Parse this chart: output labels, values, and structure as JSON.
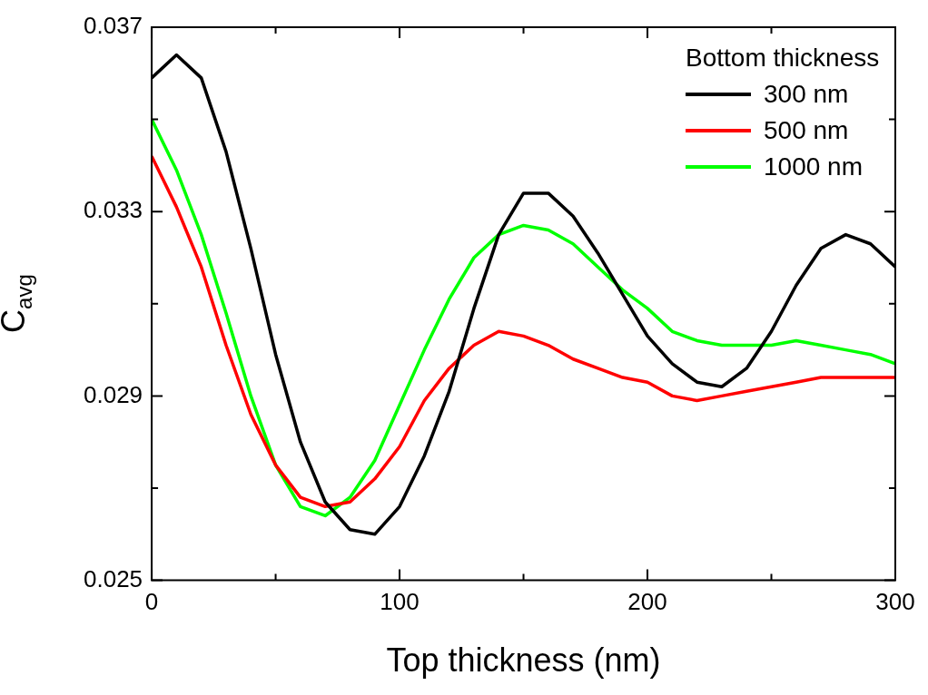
{
  "chart_data": {
    "type": "line",
    "xlabel": "Top thickness (nm)",
    "ylabel": "C$_{avg}$",
    "legend_title": "Bottom thickness",
    "legend": "top right",
    "grid": false,
    "marker": "none",
    "line_style": "solid",
    "x": [
      0,
      10,
      20,
      30,
      40,
      50,
      60,
      70,
      80,
      90,
      100,
      110,
      120,
      130,
      140,
      150,
      160,
      170,
      180,
      190,
      200,
      210,
      220,
      230,
      240,
      250,
      260,
      270,
      280,
      290,
      300
    ],
    "xlim": [
      0,
      300
    ],
    "xticks": [
      0,
      {
        "value": 50,
        "label": null
      },
      100,
      {
        "value": 150,
        "label": null
      },
      200,
      {
        "value": 250,
        "label": null
      },
      300
    ],
    "ylim": [
      0.025,
      0.037
    ],
    "yticks": [
      0.025,
      {
        "value": 0.027,
        "label": null
      },
      0.029,
      {
        "value": 0.031,
        "label": null
      },
      0.033,
      {
        "value": 0.035,
        "label": null
      },
      0.037
    ],
    "series": [
      {
        "name": "300 nm",
        "color": "#000000",
        "values": [
          0.0359,
          0.0364,
          0.0359,
          0.0343,
          0.0322,
          0.0299,
          0.028,
          0.0267,
          0.0261,
          0.026,
          0.0266,
          0.0277,
          0.0291,
          0.0309,
          0.0325,
          0.0334,
          0.0334,
          0.0329,
          0.0321,
          0.0312,
          0.0303,
          0.0297,
          0.0293,
          0.0292,
          0.0296,
          0.0304,
          0.0314,
          0.0322,
          0.0325,
          0.0323,
          0.0318
        ]
      },
      {
        "name": "500 nm",
        "color": "#ff0000",
        "values": [
          0.0342,
          0.0331,
          0.0318,
          0.0301,
          0.0286,
          0.0275,
          0.0268,
          0.0266,
          0.0267,
          0.0272,
          0.0279,
          0.0289,
          0.0296,
          0.0301,
          0.0304,
          0.0303,
          0.0301,
          0.0298,
          0.0296,
          0.0294,
          0.0293,
          0.029,
          0.0289,
          0.029,
          0.0291,
          0.0292,
          0.0293,
          0.0294,
          0.0294,
          0.0294,
          0.0294
        ]
      },
      {
        "name": "1000 nm",
        "color": "#00ff00",
        "values": [
          0.035,
          0.0339,
          0.0325,
          0.0308,
          0.029,
          0.0275,
          0.0266,
          0.0264,
          0.0268,
          0.0276,
          0.0288,
          0.03,
          0.0311,
          0.032,
          0.0325,
          0.0327,
          0.0326,
          0.0323,
          0.0318,
          0.0313,
          0.0309,
          0.0304,
          0.0302,
          0.0301,
          0.0301,
          0.0301,
          0.0302,
          0.0301,
          0.03,
          0.0299,
          0.0297
        ]
      }
    ]
  }
}
